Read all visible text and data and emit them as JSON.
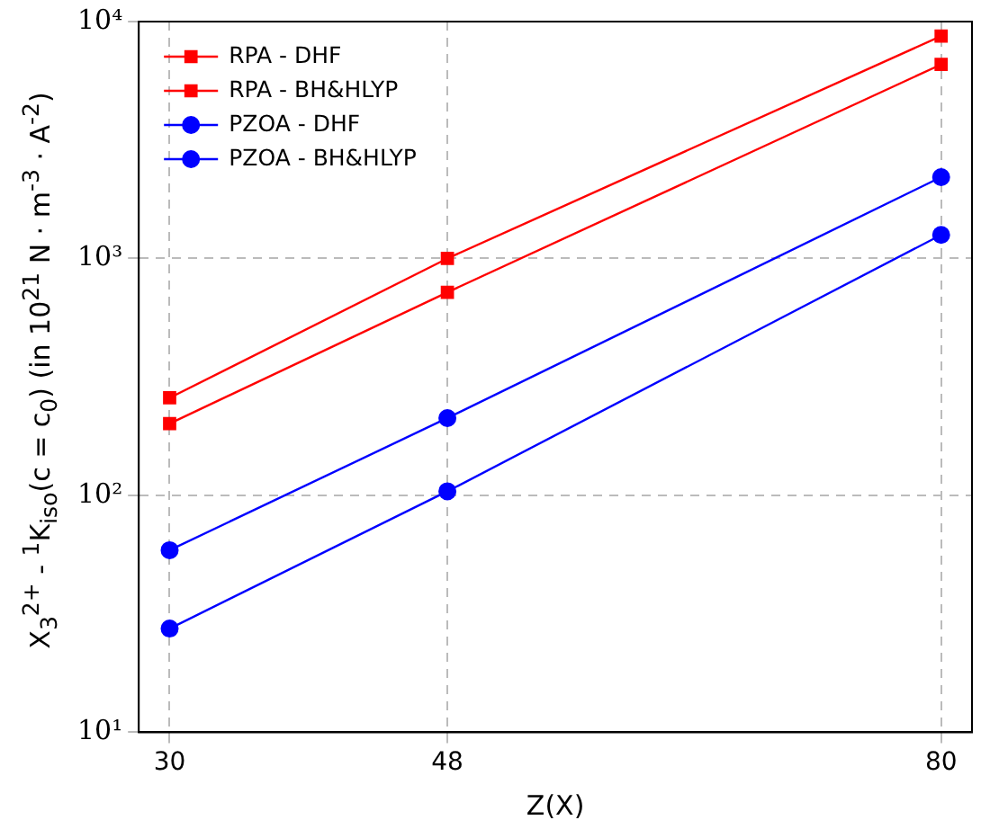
{
  "chart_data": {
    "type": "line",
    "xlabel": "Z(X)",
    "ylabel": "X$_{3}$$^{2+}$ - $^{1}$K$_{iso}$(c = c$_{0}$) (in 10$^{21}$ N · m$^{-3}$ · A$^{-2}$)",
    "x": [
      30,
      48,
      80
    ],
    "xlim": [
      28,
      82
    ],
    "xticks": [
      30,
      48,
      80
    ],
    "log": "y",
    "ylim": [
      10,
      10000
    ],
    "yticks": [
      {
        "value": 10,
        "label": "10¹"
      },
      {
        "value": 100,
        "label": "10²"
      },
      {
        "value": 1000,
        "label": "10³"
      },
      {
        "value": 10000,
        "label": "10⁴"
      }
    ],
    "grid": true,
    "legend": "top left",
    "line_style": "solid",
    "series": [
      {
        "name": "RPA - DHF",
        "color": "#ff0000",
        "marker": "square",
        "values": [
          258,
          1000,
          8690
        ]
      },
      {
        "name": "RPA - BH&HLYP",
        "color": "#ff0000",
        "marker": "square",
        "values": [
          201,
          720,
          6590
        ]
      },
      {
        "name": "PZOA - DHF",
        "color": "#0000ff",
        "marker": "circle",
        "values": [
          27.4,
          104,
          1257
        ]
      },
      {
        "name": "PZOA - BH&HLYP",
        "color": "#0000ff",
        "marker": "circle",
        "values": [
          58.7,
          212,
          2205
        ]
      }
    ]
  }
}
